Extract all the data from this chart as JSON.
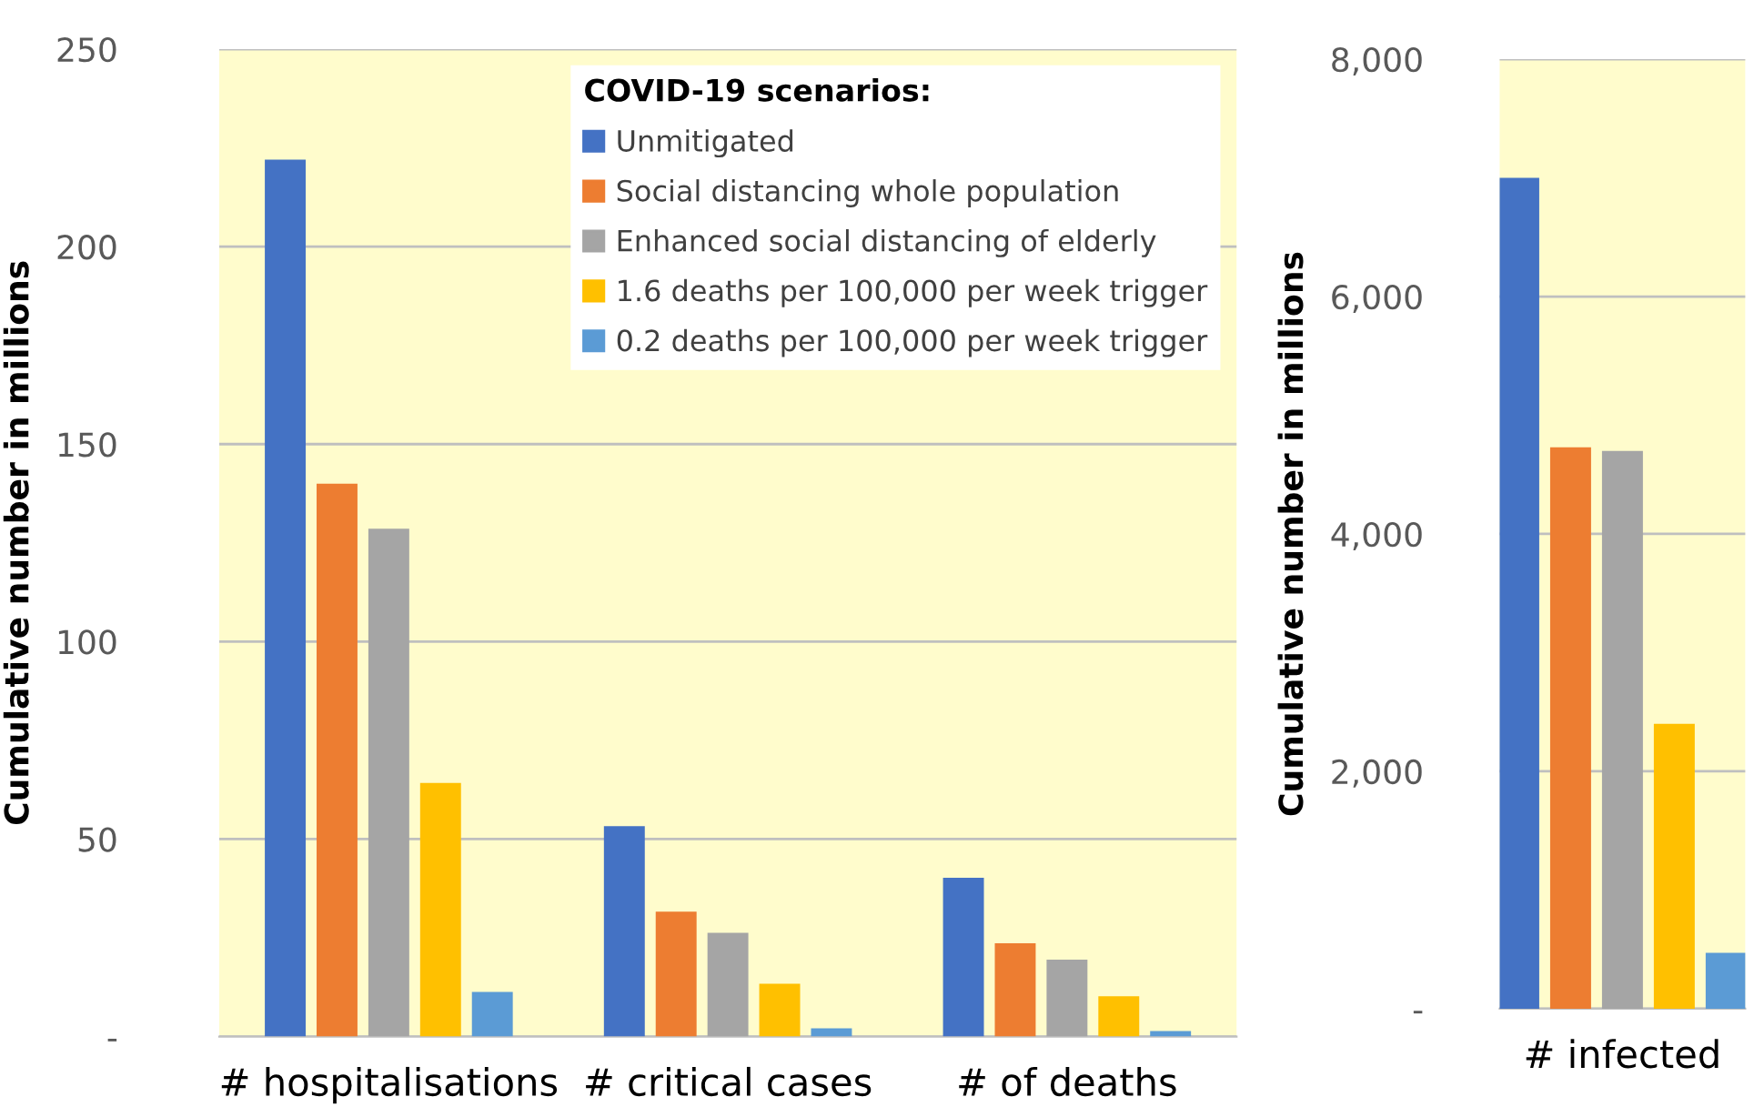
{
  "chart_data": [
    {
      "type": "bar",
      "ylabel": "Cumulative number in millions",
      "legend_title": "COVID-19 scenarios:",
      "legend": "top right",
      "grid": "y",
      "categories": [
        "# hospitalisations",
        "# critical cases",
        "# of deaths"
      ],
      "ylim": [
        0,
        250
      ],
      "yticks": [
        {
          "value": 0,
          "label": "-"
        },
        50,
        100,
        150,
        200,
        250
      ],
      "series": [
        {
          "name": "Unmitigated",
          "color": "#4472c4",
          "values": [
            222,
            53.3,
            40.2
          ]
        },
        {
          "name": "Social distancing whole population",
          "color": "#ed7d31",
          "values": [
            140,
            31.6,
            23.6
          ]
        },
        {
          "name": "Enhanced social distancing of elderly",
          "color": "#a5a5a5",
          "values": [
            128.6,
            26.3,
            19.5
          ]
        },
        {
          "name": "1.6 deaths per 100,000 per week trigger",
          "color": "#ffc000",
          "values": [
            64.2,
            13.4,
            10.2
          ]
        },
        {
          "name": "0.2 deaths per 100,000 per week trigger",
          "color": "#5b9bd5",
          "values": [
            11.3,
            2.1,
            1.4
          ]
        }
      ]
    },
    {
      "type": "bar",
      "ylabel": "Cumulative number in millions",
      "grid": "y",
      "categories": [
        "# infected"
      ],
      "ylim": [
        0,
        8000
      ],
      "yticks": [
        {
          "value": 0,
          "label": "-"
        },
        {
          "value": 2000,
          "label": "2,000"
        },
        {
          "value": 4000,
          "label": "4,000"
        },
        {
          "value": 6000,
          "label": "6,000"
        },
        {
          "value": 8000,
          "label": "8,000"
        }
      ],
      "series": [
        {
          "color": "#4472c4",
          "values": [
            7000
          ]
        },
        {
          "color": "#ed7d31",
          "values": [
            4730
          ]
        },
        {
          "color": "#a5a5a5",
          "values": [
            4700
          ]
        },
        {
          "color": "#ffc000",
          "values": [
            2400
          ]
        },
        {
          "color": "#5b9bd5",
          "values": [
            470
          ]
        }
      ]
    }
  ]
}
